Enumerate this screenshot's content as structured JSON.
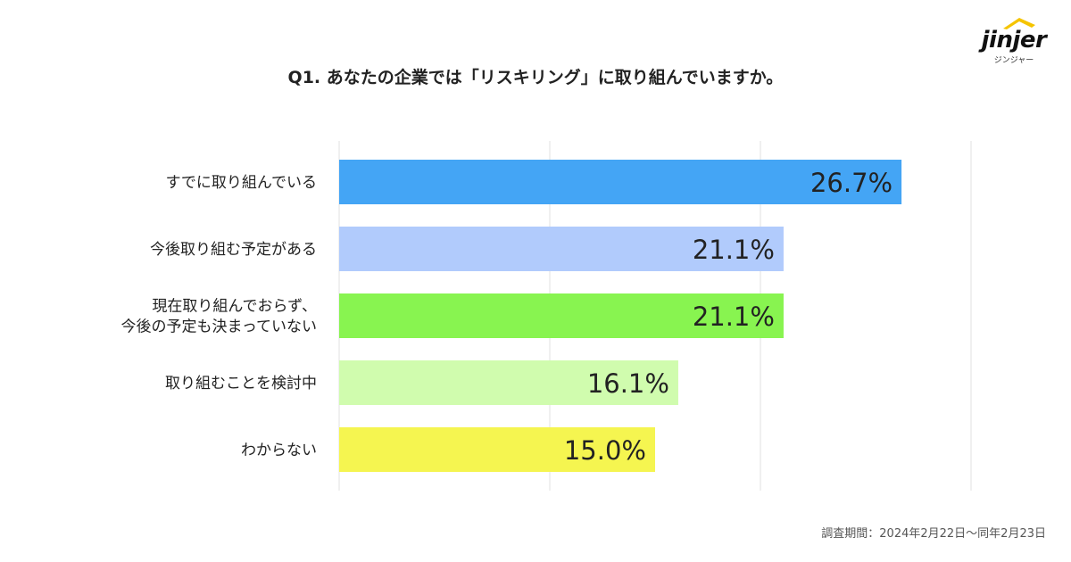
{
  "logo": {
    "wordmark": "jinjer",
    "kana": "ジンジャー",
    "roof_color": "#f5c400"
  },
  "chart_data": {
    "type": "bar",
    "orientation": "horizontal",
    "title": "Q1. あなたの企業では「リスキリング」に取り組んでいますか。",
    "categories": [
      [
        "すでに取り組んでいる"
      ],
      [
        "今後取り組む予定がある"
      ],
      [
        "現在取り組んでおらず、",
        "今後の予定も決まっていない"
      ],
      [
        "取り組むことを検討中"
      ],
      [
        "わからない"
      ]
    ],
    "values": [
      26.7,
      21.1,
      21.1,
      16.1,
      15.0
    ],
    "value_labels": [
      "26.7%",
      "21.1%",
      "21.1%",
      "16.1%",
      "15.0%"
    ],
    "colors": [
      "#44a5f5",
      "#b1cbfc",
      "#88f450",
      "#d0fcae",
      "#f5f550"
    ],
    "xlim": [
      0,
      30
    ],
    "gridlines": [
      0,
      10,
      20,
      30
    ],
    "xlabel": "",
    "ylabel": "",
    "legend": "none"
  },
  "footnote": "調査期間：2024年2月22日〜同年2月23日"
}
